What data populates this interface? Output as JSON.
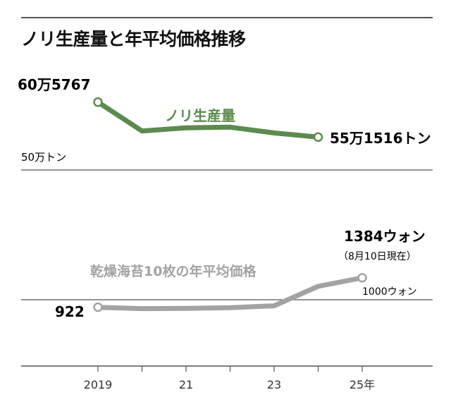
{
  "title": "ノリ生産量と年平均価格推移",
  "x_tick_labels": [
    "2019",
    "21",
    "23",
    "25年"
  ],
  "colors": {
    "production": "#5c8a4f",
    "price": "#a3a3a3",
    "axis": "#555555",
    "text": "#111111"
  },
  "chart_data": [
    {
      "type": "line",
      "name": "ノリ生産量",
      "series_label": "ノリ生産量",
      "x": [
        2019,
        2020,
        2021,
        2022,
        2023,
        2024
      ],
      "values": [
        605767,
        561000,
        566000,
        567000,
        558000,
        551516
      ],
      "ylim": [
        500000,
        620000
      ],
      "unit_label": "50万トン",
      "first_label": "60万5767",
      "last_label": "55万1516トン"
    },
    {
      "type": "line",
      "name": "乾燥海苔10枚の年平均価格",
      "series_label": "乾燥海苔10枚の年平均価格",
      "x": [
        2019,
        2020,
        2021,
        2022,
        2023,
        2024,
        2025
      ],
      "values": [
        922,
        900,
        905,
        915,
        945,
        1250,
        1384
      ],
      "ylim": [
        0,
        1500
      ],
      "unit_label": "1000ウォン",
      "first_label": "922",
      "last_label": "1384ウォン",
      "last_note": "（8月10日現在）"
    }
  ]
}
